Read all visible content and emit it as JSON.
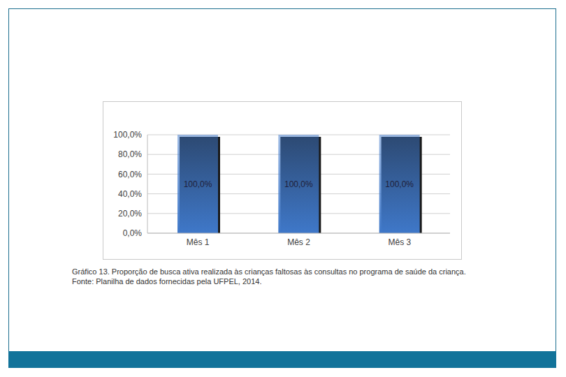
{
  "chart_data": {
    "type": "bar",
    "categories": [
      "Mês 1",
      "Mês 2",
      "Mês 3"
    ],
    "values": [
      100,
      100,
      100
    ],
    "value_labels": [
      "100,0%",
      "100,0%",
      "100,0%"
    ],
    "data_labels": true,
    "color": "#3f78c9",
    "ylim": [
      0,
      100
    ],
    "yticks": [
      {
        "value": 0,
        "label": "0,0%"
      },
      {
        "value": 20,
        "label": "20,0%"
      },
      {
        "value": 40,
        "label": "40,0%"
      },
      {
        "value": 60,
        "label": "60,0%"
      },
      {
        "value": 80,
        "label": "80,0%"
      },
      {
        "value": 100,
        "label": "100,0%"
      }
    ],
    "grid": true
  },
  "caption": "Gráfico 13. Proporção de busca ativa realizada às crianças faltosas às consultas no programa de saúde da criança.",
  "source": "Fonte: Planilha de dados fornecidas pela UFPEL, 2014."
}
